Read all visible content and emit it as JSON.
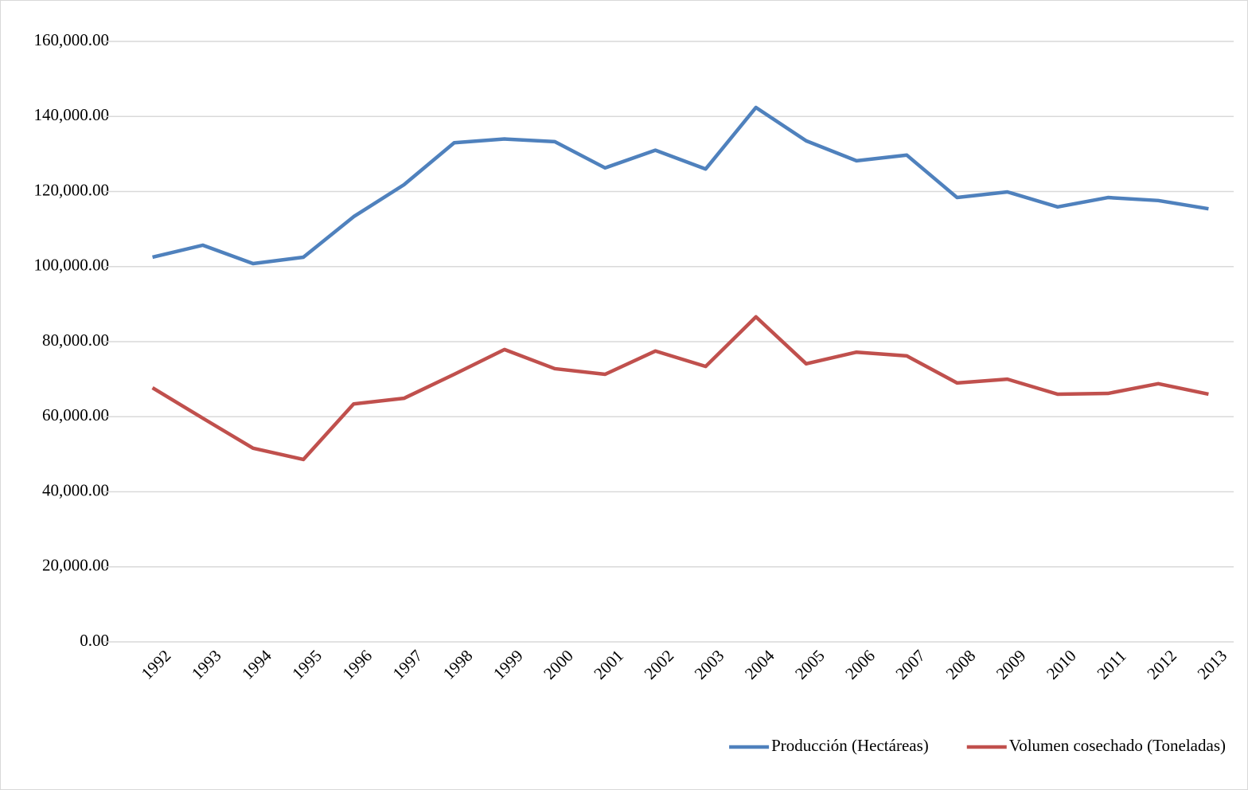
{
  "chart_data": {
    "type": "line",
    "categories": [
      "1992",
      "1993",
      "1994",
      "1995",
      "1996",
      "1997",
      "1998",
      "1999",
      "2000",
      "2001",
      "2002",
      "2003",
      "2004",
      "2005",
      "2006",
      "2007",
      "2008",
      "2009",
      "2010",
      "2011",
      "2012",
      "2013"
    ],
    "series": [
      {
        "name": "Producción (Hectáreas)",
        "color": "#4f81bd",
        "values": [
          102500,
          105700,
          100800,
          102500,
          113300,
          121800,
          133000,
          134000,
          133300,
          126300,
          131000,
          126000,
          142400,
          133500,
          128200,
          129700,
          118400,
          119900,
          115900,
          118400,
          117600,
          115400
        ]
      },
      {
        "name": "Volumen cosechado (Toneladas)",
        "color": "#c0504d",
        "values": [
          67700,
          59600,
          51600,
          48600,
          63400,
          64900,
          71300,
          77900,
          72800,
          71300,
          77500,
          73400,
          86600,
          74100,
          77200,
          76200,
          69000,
          70000,
          66000,
          66200,
          68800,
          66000
        ]
      }
    ],
    "ylim": [
      0,
      160000
    ],
    "yticks": [
      {
        "value": 0,
        "label": "0.00"
      },
      {
        "value": 20000,
        "label": "20,000.00"
      },
      {
        "value": 40000,
        "label": "40,000.00"
      },
      {
        "value": 60000,
        "label": "60,000.00"
      },
      {
        "value": 80000,
        "label": "80,000.00"
      },
      {
        "value": 100000,
        "label": "100,000.00"
      },
      {
        "value": 120000,
        "label": "120,000.00"
      },
      {
        "value": 140000,
        "label": "140,000.00"
      },
      {
        "value": 160000,
        "label": "160,000.00"
      }
    ],
    "grid": true,
    "legend": "bottom-right"
  }
}
